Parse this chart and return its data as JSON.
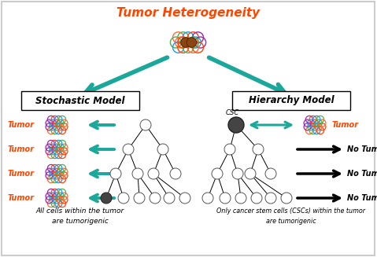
{
  "title": "Tumor Heterogeneity",
  "title_color": "#FF4500",
  "title_fontsize": 11,
  "stochastic_label": "Stochastic Model",
  "hierarchy_label": "Hierarchy Model",
  "teal": "#1BA89A",
  "black": "#000000",
  "red": "#FF4500",
  "caption_left": "All cells within the tumor\nare tumorigenic",
  "caption_right": "Only cancer stem cells (CSCs) within the tumor\nare tumorigenic",
  "tumor_label": "Tumor",
  "no_tumor_label": "No Tumor",
  "csc_label": "CSC",
  "cell_colors_ring": [
    "#FF6B35",
    "#4CAF50",
    "#2196F3",
    "#FF4500",
    "#9C27B0"
  ],
  "bg_color": "#FFFFFF",
  "border_color": "#CCCCCC",
  "gray_cell": "#888888",
  "dark_cell": "#444444",
  "brown_cell": "#8B4513"
}
